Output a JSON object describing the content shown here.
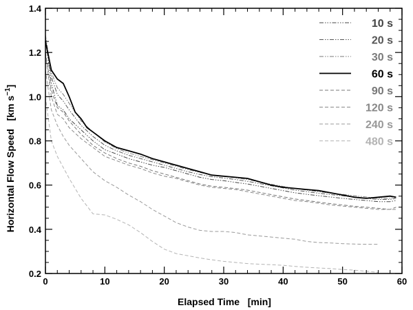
{
  "chart_data": {
    "type": "line",
    "title": "",
    "xlabel": "Elapsed Time   [min]",
    "ylabel_main": "Horizontal Flow Speed   [km s",
    "ylabel_exp": "−1",
    "ylabel_close": "]",
    "xlim": [
      0,
      60
    ],
    "ylim": [
      0.2,
      1.4
    ],
    "x_ticks": [
      0,
      10,
      20,
      30,
      40,
      50,
      60
    ],
    "x_tick_labels": [
      "0",
      "10",
      "20",
      "30",
      "40",
      "50",
      "60"
    ],
    "y_ticks": [
      0.2,
      0.4,
      0.6,
      0.8,
      1.0,
      1.2,
      1.4
    ],
    "y_tick_labels": [
      "0.2",
      "0.4",
      "0.6",
      "0.8",
      "1.0",
      "1.2",
      "1.4"
    ],
    "grid": false,
    "legend_position": "top-right",
    "series": [
      {
        "name": "10 s",
        "color": "#444444",
        "style": "dashdotdotdot",
        "x": [
          0,
          1,
          2,
          3,
          4,
          6,
          8,
          10,
          12,
          14,
          16,
          18,
          20,
          22,
          24,
          26,
          28,
          30,
          32,
          34,
          36,
          38,
          40,
          42,
          44,
          46,
          48,
          50,
          52,
          54,
          56,
          58,
          59
        ],
        "y": [
          1.26,
          1.06,
          0.96,
          0.94,
          0.9,
          0.85,
          0.8,
          0.76,
          0.74,
          0.72,
          0.705,
          0.69,
          0.68,
          0.665,
          0.65,
          0.635,
          0.625,
          0.62,
          0.612,
          0.605,
          0.595,
          0.585,
          0.575,
          0.565,
          0.558,
          0.552,
          0.546,
          0.54,
          0.535,
          0.53,
          0.525,
          0.525,
          0.53
        ]
      },
      {
        "name": "20 s",
        "color": "#555555",
        "style": "dashdotdot",
        "x": [
          0,
          1,
          2,
          3,
          4,
          6,
          8,
          10,
          12,
          14,
          16,
          18,
          20,
          22,
          24,
          26,
          28,
          30,
          32,
          34,
          36,
          38,
          40,
          42,
          44,
          46,
          48,
          50,
          52,
          54,
          56,
          58,
          59
        ],
        "y": [
          1.27,
          1.09,
          1.01,
          0.98,
          0.94,
          0.87,
          0.82,
          0.78,
          0.755,
          0.735,
          0.72,
          0.705,
          0.69,
          0.675,
          0.66,
          0.648,
          0.638,
          0.632,
          0.625,
          0.617,
          0.607,
          0.597,
          0.587,
          0.577,
          0.57,
          0.563,
          0.557,
          0.552,
          0.546,
          0.54,
          0.535,
          0.535,
          0.54
        ]
      },
      {
        "name": "30 s",
        "color": "#7a7a7a",
        "style": "dashdotdot",
        "x": [
          0,
          1,
          2,
          3,
          4,
          6,
          8,
          10,
          12,
          14,
          16,
          18,
          20,
          22,
          24,
          26,
          28,
          30,
          32,
          34,
          36,
          38,
          40,
          42,
          44,
          46,
          48,
          50,
          52,
          54,
          56,
          58,
          59
        ],
        "y": [
          1.28,
          1.11,
          1.04,
          1.01,
          0.97,
          0.89,
          0.84,
          0.795,
          0.765,
          0.745,
          0.73,
          0.715,
          0.7,
          0.685,
          0.67,
          0.657,
          0.646,
          0.64,
          0.633,
          0.625,
          0.615,
          0.604,
          0.594,
          0.584,
          0.577,
          0.57,
          0.563,
          0.558,
          0.552,
          0.546,
          0.54,
          0.54,
          0.545
        ]
      },
      {
        "name": "60 s",
        "color": "#000000",
        "style": "solid",
        "x": [
          0,
          1,
          2,
          3,
          4,
          5,
          6,
          7,
          8,
          10,
          12,
          14,
          16,
          18,
          20,
          22,
          24,
          26,
          28,
          30,
          32,
          34,
          36,
          38,
          40,
          42,
          44,
          46,
          48,
          50,
          52,
          54,
          56,
          58,
          59
        ],
        "y": [
          1.25,
          1.12,
          1.08,
          1.06,
          1.0,
          0.93,
          0.9,
          0.86,
          0.84,
          0.8,
          0.77,
          0.755,
          0.74,
          0.72,
          0.705,
          0.69,
          0.675,
          0.66,
          0.645,
          0.64,
          0.635,
          0.63,
          0.615,
          0.6,
          0.59,
          0.585,
          0.58,
          0.575,
          0.565,
          0.555,
          0.545,
          0.54,
          0.545,
          0.55,
          0.545
        ]
      },
      {
        "name": "90 s",
        "color": "#777777",
        "style": "dashed",
        "x": [
          0,
          1,
          2,
          3,
          4,
          6,
          8,
          10,
          12,
          14,
          16,
          18,
          20,
          22,
          24,
          26,
          28,
          30,
          32,
          34,
          36,
          38,
          40,
          42,
          44,
          46,
          48,
          50,
          52,
          54,
          56,
          58,
          59
        ],
        "y": [
          1.2,
          1.03,
          0.95,
          0.93,
          0.89,
          0.83,
          0.78,
          0.745,
          0.72,
          0.7,
          0.685,
          0.665,
          0.65,
          0.635,
          0.62,
          0.605,
          0.595,
          0.59,
          0.584,
          0.577,
          0.567,
          0.557,
          0.547,
          0.537,
          0.53,
          0.523,
          0.516,
          0.51,
          0.504,
          0.5,
          0.495,
          0.49,
          0.5
        ]
      },
      {
        "name": "120 s",
        "color": "#888888",
        "style": "dashed",
        "x": [
          0,
          1,
          2,
          3,
          4,
          6,
          8,
          10,
          12,
          14,
          16,
          18,
          20,
          22,
          24,
          26,
          28,
          30,
          32,
          34,
          36,
          38,
          40,
          42,
          44,
          46,
          48,
          50,
          52,
          54,
          56,
          58,
          59
        ],
        "y": [
          1.19,
          1.0,
          0.92,
          0.9,
          0.86,
          0.81,
          0.77,
          0.73,
          0.71,
          0.69,
          0.675,
          0.655,
          0.64,
          0.63,
          0.615,
          0.6,
          0.59,
          0.585,
          0.58,
          0.57,
          0.56,
          0.55,
          0.54,
          0.53,
          0.525,
          0.518,
          0.51,
          0.505,
          0.5,
          0.495,
          0.49,
          0.49,
          0.49
        ]
      },
      {
        "name": "240 s",
        "color": "#999999",
        "style": "dashed",
        "x": [
          0,
          1,
          2,
          3,
          4,
          6,
          8,
          10,
          12,
          14,
          16,
          18,
          20,
          22,
          24,
          26,
          28,
          30,
          32,
          34,
          36,
          38,
          40,
          42,
          44,
          46,
          48,
          50,
          52,
          54,
          56
        ],
        "y": [
          1.12,
          0.94,
          0.87,
          0.82,
          0.78,
          0.72,
          0.66,
          0.62,
          0.59,
          0.555,
          0.525,
          0.49,
          0.46,
          0.43,
          0.41,
          0.395,
          0.39,
          0.39,
          0.385,
          0.375,
          0.37,
          0.365,
          0.36,
          0.355,
          0.345,
          0.34,
          0.338,
          0.335,
          0.333,
          0.332,
          0.332
        ]
      },
      {
        "name": "480 s",
        "color": "#b3b3b3",
        "style": "dashed",
        "x": [
          0,
          1,
          2,
          3,
          4,
          6,
          8,
          10,
          12,
          14,
          16,
          18,
          20,
          22,
          24,
          26,
          28,
          30,
          32,
          34,
          36,
          38,
          40,
          42,
          44,
          46,
          48,
          50,
          52,
          54,
          56
        ],
        "y": [
          1.0,
          0.8,
          0.73,
          0.68,
          0.63,
          0.54,
          0.47,
          0.465,
          0.445,
          0.42,
          0.385,
          0.345,
          0.31,
          0.29,
          0.28,
          0.27,
          0.262,
          0.255,
          0.25,
          0.245,
          0.242,
          0.24,
          0.237,
          0.232,
          0.228,
          0.225,
          0.222,
          0.218,
          0.215,
          0.21,
          0.205
        ]
      }
    ]
  }
}
